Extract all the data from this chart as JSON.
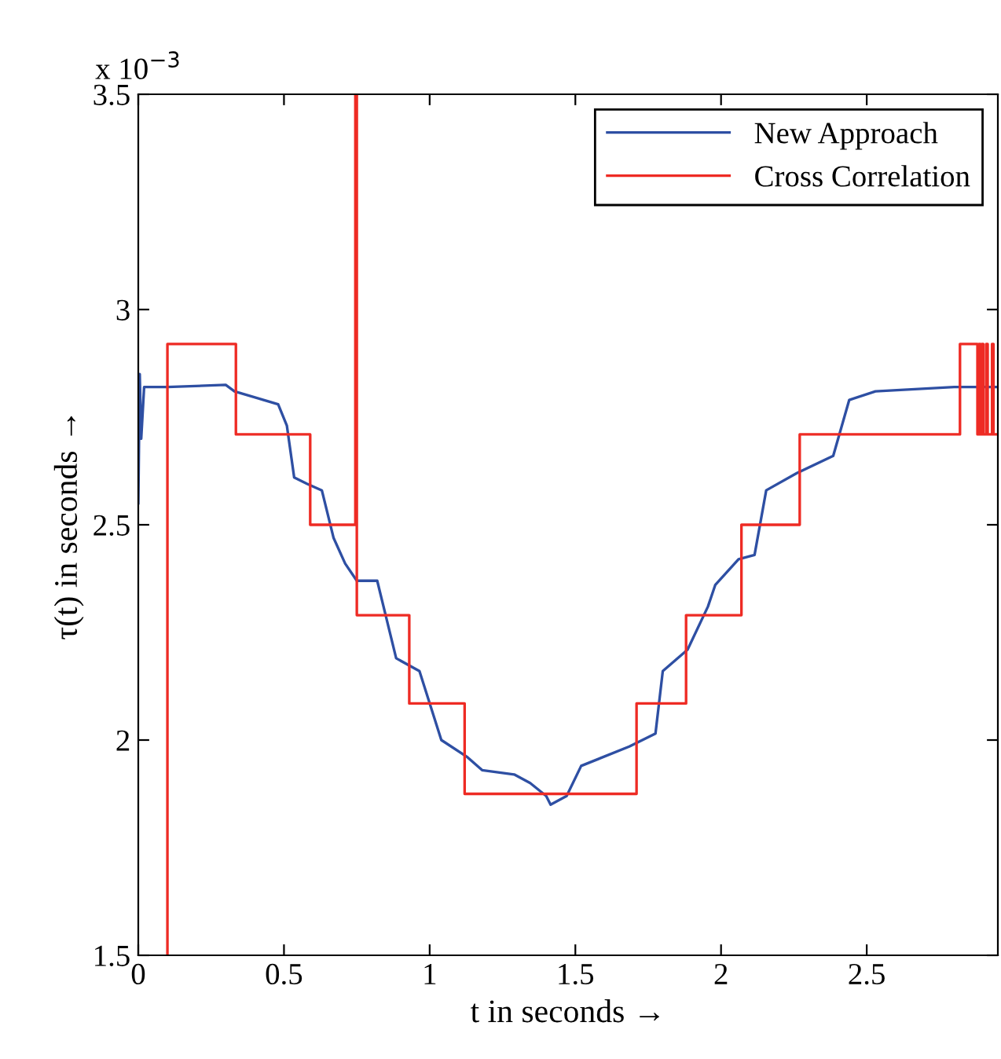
{
  "chart_data": {
    "type": "line",
    "xlabel": "t in seconds →",
    "ylabel": "τ(t) in seconds →",
    "annotations": [
      "x 10$^{−3}$"
    ],
    "xlim": [
      0,
      2.95
    ],
    "xticks": [
      0,
      0.5,
      1,
      1.5,
      2,
      2.5
    ],
    "ylim": [
      1.5,
      3.5
    ],
    "yticks": [
      1.5,
      2,
      2.5,
      3,
      3.5
    ],
    "grid": false,
    "legend": "top right",
    "series": [
      {
        "name": "New Approach",
        "color": "#2e4fa3",
        "x": [
          0,
          0.005,
          0.01,
          0.02,
          0.1,
          0.3,
          0.33,
          0.43,
          0.48,
          0.51,
          0.535,
          0.58,
          0.63,
          0.67,
          0.71,
          0.75,
          0.82,
          0.885,
          0.965,
          1.04,
          1.13,
          1.18,
          1.29,
          1.345,
          1.4,
          1.415,
          1.47,
          1.52,
          1.685,
          1.775,
          1.8,
          1.885,
          1.955,
          1.98,
          2.06,
          2.115,
          2.155,
          2.26,
          2.385,
          2.44,
          2.53,
          2.8,
          2.95
        ],
        "values": [
          2.55,
          2.85,
          2.7,
          2.82,
          2.82,
          2.825,
          2.81,
          2.79,
          2.78,
          2.73,
          2.61,
          2.595,
          2.58,
          2.47,
          2.41,
          2.37,
          2.37,
          2.19,
          2.16,
          2.0,
          1.96,
          1.93,
          1.92,
          1.9,
          1.87,
          1.85,
          1.87,
          1.94,
          1.985,
          2.015,
          2.16,
          2.21,
          2.31,
          2.36,
          2.42,
          2.43,
          2.58,
          2.62,
          2.66,
          2.79,
          2.81,
          2.82,
          2.82
        ]
      },
      {
        "name": "Cross Correlation",
        "color": "#ee2b24",
        "type": "step",
        "x": [
          0.1,
          0.1,
          0.335,
          0.59,
          0.745,
          0.75,
          0.93,
          1.12,
          1.71,
          1.88,
          2.07,
          2.27,
          2.82,
          2.88,
          2.885,
          2.89,
          2.895,
          2.9,
          2.91,
          2.915,
          2.93,
          2.935,
          2.95
        ],
        "values": [
          1.5,
          2.92,
          2.71,
          2.5,
          3.5,
          2.29,
          2.085,
          1.875,
          2.085,
          2.29,
          2.5,
          2.71,
          2.92,
          2.71,
          2.92,
          2.71,
          2.92,
          2.71,
          2.92,
          2.71,
          2.92,
          2.71,
          2.71
        ]
      }
    ]
  }
}
